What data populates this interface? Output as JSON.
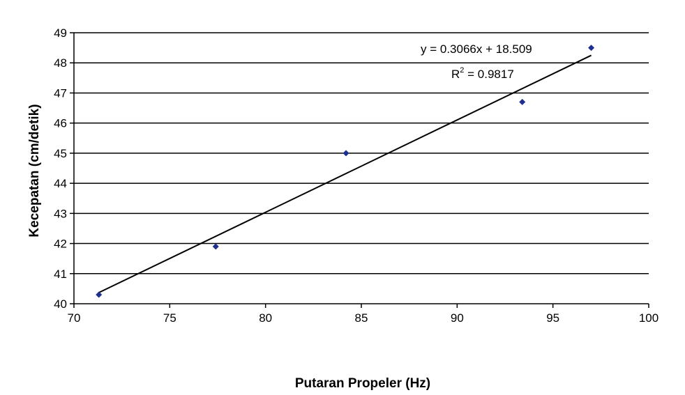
{
  "chart_data": {
    "type": "scatter",
    "title": "",
    "xlabel": "Putaran Propeler (Hz)",
    "ylabel": "Kecepatan (cm/detik)",
    "xlim": [
      70,
      100
    ],
    "ylim": [
      40,
      49
    ],
    "xticks": [
      70,
      75,
      80,
      85,
      90,
      95,
      100
    ],
    "yticks": [
      40,
      41,
      42,
      43,
      44,
      45,
      46,
      47,
      48,
      49
    ],
    "grid": "horizontal",
    "legend": "none",
    "series": [
      {
        "x": [
          71.3,
          77.4,
          84.2,
          93.4,
          97.0
        ],
        "y": [
          40.3,
          41.9,
          45.0,
          46.7,
          48.5
        ],
        "color": "#1f2f8f",
        "marker": "diamond"
      }
    ],
    "trendline": {
      "slope": 0.3066,
      "intercept": 18.509,
      "x_range": [
        71.3,
        97.0
      ],
      "color": "#000000"
    },
    "annotations": {
      "equation": "y = 0.3066x + 18.509",
      "r2_prefix": "R",
      "r2_exponent": "2",
      "r2_value": " = 0.9817"
    }
  }
}
